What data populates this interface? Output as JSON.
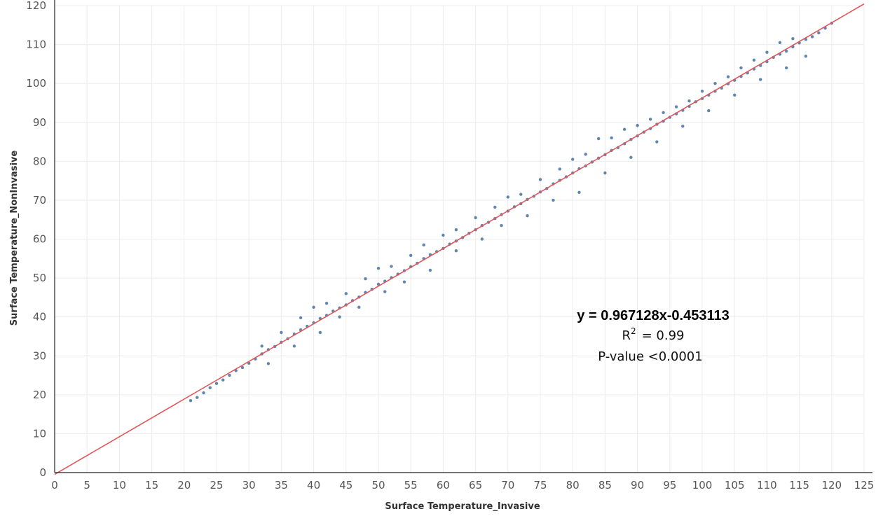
{
  "chart_data": {
    "type": "scatter",
    "xlabel": "Surface Temperature_Invasive",
    "ylabel": "Surface Temperature_NonInvasive",
    "xlim": [
      0,
      125
    ],
    "ylim": [
      0,
      120
    ],
    "x_ticks": [
      "0",
      "5",
      "10",
      "15",
      "20",
      "25",
      "30",
      "35",
      "40",
      "45",
      "50",
      "55",
      "60",
      "65",
      "70",
      "75",
      "80",
      "85",
      "90",
      "95",
      "100",
      "105",
      "110",
      "115",
      "120",
      "125"
    ],
    "y_ticks": [
      "0",
      "10",
      "20",
      "30",
      "40",
      "50",
      "60",
      "70",
      "80",
      "90",
      "100",
      "110",
      "120"
    ],
    "grid": true,
    "point_color": "#4e79a7",
    "line_color": "#e15759",
    "series": [
      {
        "points": [
          [
            21,
            18.5
          ],
          [
            22,
            19.3
          ],
          [
            23,
            20.5
          ],
          [
            24,
            21.8
          ],
          [
            25,
            22.9
          ],
          [
            26,
            23.8
          ],
          [
            27,
            25
          ],
          [
            28,
            26.2
          ],
          [
            29,
            27
          ],
          [
            30,
            28.1
          ],
          [
            31,
            29.2
          ],
          [
            32,
            30.5
          ],
          [
            33,
            31.6
          ],
          [
            34,
            32.4
          ],
          [
            35,
            33.5
          ],
          [
            36,
            34.4
          ],
          [
            37,
            35.6
          ],
          [
            38,
            36.7
          ],
          [
            39,
            37.6
          ],
          [
            40,
            38.5
          ],
          [
            41,
            39.6
          ],
          [
            42,
            40.4
          ],
          [
            43,
            41.5
          ],
          [
            44,
            42.3
          ],
          [
            45,
            43.1
          ],
          [
            46,
            44.2
          ],
          [
            47,
            45.1
          ],
          [
            48,
            46.3
          ],
          [
            49,
            47.1
          ],
          [
            50,
            48.4
          ],
          [
            51,
            49.2
          ],
          [
            52,
            50.1
          ],
          [
            53,
            51
          ],
          [
            54,
            51.9
          ],
          [
            55,
            52.9
          ],
          [
            56,
            53.8
          ],
          [
            57,
            55
          ],
          [
            58,
            56
          ],
          [
            59,
            56.8
          ],
          [
            60,
            57.6
          ],
          [
            61,
            58.7
          ],
          [
            62,
            59.5
          ],
          [
            63,
            60.4
          ],
          [
            64,
            61.5
          ],
          [
            65,
            62.4
          ],
          [
            66,
            63.5
          ],
          [
            67,
            64.3
          ],
          [
            68,
            65.3
          ],
          [
            69,
            66.3
          ],
          [
            70,
            67.2
          ],
          [
            71,
            68.3
          ],
          [
            72,
            69.1
          ],
          [
            73,
            70.2
          ],
          [
            74,
            71
          ],
          [
            75,
            72.1
          ],
          [
            76,
            73
          ],
          [
            77,
            74.2
          ],
          [
            78,
            75.1
          ],
          [
            79,
            76
          ],
          [
            80,
            77
          ],
          [
            81,
            78.1
          ],
          [
            82,
            78.8
          ],
          [
            83,
            79.8
          ],
          [
            84,
            80.8
          ],
          [
            85,
            81.7
          ],
          [
            86,
            82.8
          ],
          [
            87,
            83.5
          ],
          [
            88,
            84.5
          ],
          [
            89,
            85.6
          ],
          [
            90,
            86.5
          ],
          [
            91,
            87.5
          ],
          [
            92,
            88.4
          ],
          [
            93,
            89.5
          ],
          [
            94,
            90.3
          ],
          [
            95,
            91.3
          ],
          [
            96,
            92.2
          ],
          [
            97,
            93.1
          ],
          [
            98,
            94.1
          ],
          [
            99,
            95.3
          ],
          [
            100,
            96.1
          ],
          [
            101,
            97
          ],
          [
            102,
            98
          ],
          [
            103,
            98.8
          ],
          [
            104,
            99.9
          ],
          [
            105,
            100.8
          ],
          [
            106,
            101.8
          ],
          [
            107,
            102.7
          ],
          [
            108,
            103.7
          ],
          [
            109,
            104.6
          ],
          [
            110,
            105.6
          ],
          [
            111,
            106.7
          ],
          [
            112,
            107.5
          ],
          [
            113,
            108.3
          ],
          [
            114,
            109.4
          ],
          [
            115,
            110.4
          ],
          [
            116,
            111.3
          ],
          [
            117,
            112
          ],
          [
            118,
            113
          ],
          [
            119,
            114.2
          ],
          [
            120,
            115.5
          ],
          [
            32,
            32.5
          ],
          [
            35,
            36
          ],
          [
            38,
            39.8
          ],
          [
            40,
            42.5
          ],
          [
            42,
            43.5
          ],
          [
            45,
            46
          ],
          [
            48,
            49.8
          ],
          [
            50,
            52.5
          ],
          [
            52,
            53
          ],
          [
            55,
            55.8
          ],
          [
            57,
            58.5
          ],
          [
            60,
            61
          ],
          [
            62,
            62.4
          ],
          [
            65,
            65.5
          ],
          [
            68,
            68.2
          ],
          [
            70,
            70.8
          ],
          [
            72,
            71.5
          ],
          [
            75,
            75.3
          ],
          [
            78,
            78
          ],
          [
            80,
            80.5
          ],
          [
            82,
            81.8
          ],
          [
            84,
            85.8
          ],
          [
            86,
            86
          ],
          [
            88,
            88.2
          ],
          [
            90,
            89.2
          ],
          [
            92,
            90.8
          ],
          [
            94,
            92.5
          ],
          [
            96,
            94
          ],
          [
            98,
            95.5
          ],
          [
            100,
            98
          ],
          [
            102,
            100
          ],
          [
            104,
            101.7
          ],
          [
            106,
            104
          ],
          [
            108,
            106
          ],
          [
            110,
            108
          ],
          [
            112,
            110.5
          ],
          [
            114,
            111.5
          ],
          [
            33,
            28
          ],
          [
            37,
            32.5
          ],
          [
            41,
            36
          ],
          [
            44,
            40
          ],
          [
            47,
            42.5
          ],
          [
            51,
            46.5
          ],
          [
            54,
            49
          ],
          [
            58,
            52
          ],
          [
            62,
            57
          ],
          [
            66,
            60
          ],
          [
            69,
            63.5
          ],
          [
            73,
            66
          ],
          [
            77,
            70
          ],
          [
            81,
            72
          ],
          [
            85,
            77
          ],
          [
            89,
            81
          ],
          [
            93,
            85
          ],
          [
            97,
            89
          ],
          [
            101,
            93
          ],
          [
            105,
            97
          ],
          [
            109,
            101
          ],
          [
            113,
            104
          ],
          [
            116,
            107
          ]
        ]
      }
    ],
    "fit_line": {
      "slope": 0.967128,
      "intercept": -0.453113,
      "x_range": [
        0,
        125
      ]
    },
    "annotations": {
      "equation": "y = 0.967128x-0.453113",
      "r_squared_prefix": "R",
      "r_squared_sup": "2",
      "r_squared_value": "= 0.99",
      "p_value": "P-value <0.0001"
    }
  }
}
